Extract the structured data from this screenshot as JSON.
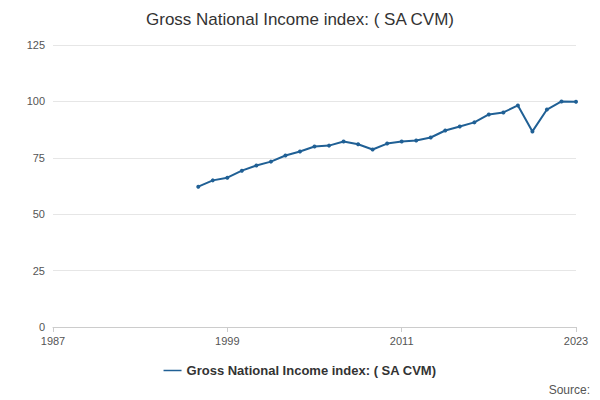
{
  "chart_data": {
    "type": "line",
    "title": "Gross National Income index: ( SA CVM)",
    "annotation": "Source:",
    "x": [
      1997,
      1998,
      1999,
      2000,
      2001,
      2002,
      2003,
      2004,
      2005,
      2006,
      2007,
      2008,
      2009,
      2010,
      2011,
      2012,
      2013,
      2014,
      2015,
      2016,
      2017,
      2018,
      2019,
      2020,
      2021,
      2022,
      2023
    ],
    "series": [
      {
        "name": "Gross National Income index: ( SA CVM)",
        "color": "#206095",
        "marker": "circle",
        "values": [
          62.2,
          65,
          66.2,
          69.3,
          71.6,
          73.3,
          76,
          77.8,
          80,
          80.4,
          82.2,
          81,
          78.7,
          81.3,
          82.2,
          82.7,
          84,
          87.1,
          88.9,
          90.7,
          94.2,
          95.1,
          98.2,
          86.7,
          96.4,
          100,
          99.8
        ]
      }
    ],
    "xlim": [
      1987,
      2023
    ],
    "xticks": [
      1987,
      1999,
      2011,
      2023
    ],
    "ylim": [
      0,
      125
    ],
    "yticks": [
      0,
      25,
      50,
      75,
      100,
      125
    ],
    "grid": true,
    "legend": "bottom"
  }
}
